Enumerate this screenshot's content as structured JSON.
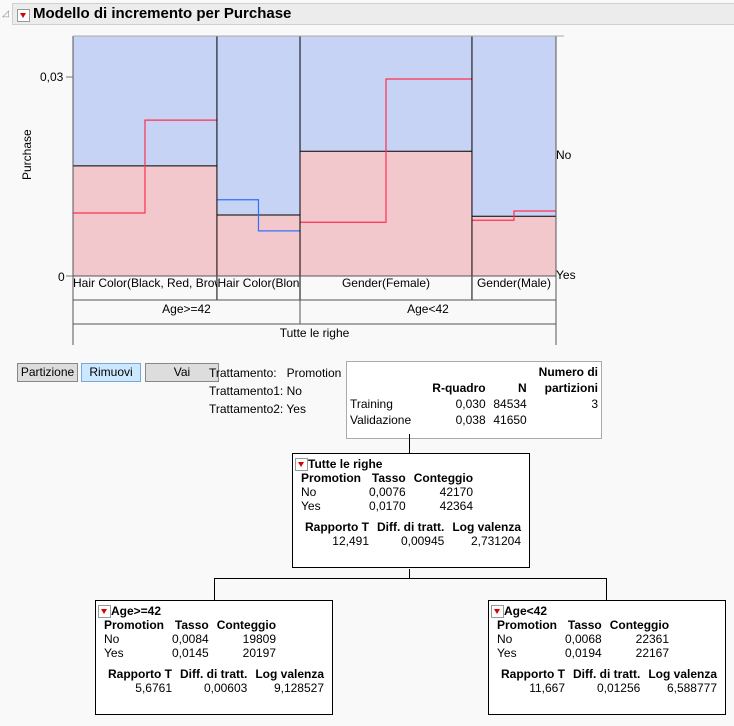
{
  "header": {
    "title": "Modello di incremento per Purchase"
  },
  "chart_data": {
    "type": "bar",
    "ylabel": "Purchase",
    "yticks": [
      "0",
      "0,03"
    ],
    "ylim": [
      0,
      0.036
    ],
    "right_labels": [
      "No",
      "Yes"
    ],
    "categories": [
      "Hair Color(Black, Red, Brow",
      "Hair Color(Blon",
      "Gender(Female)",
      "Gender(Male)"
    ],
    "groups": [
      "Age>=42",
      "Age<42"
    ],
    "root": "Tutte le righe",
    "shares": [
      0.298,
      0.172,
      0.356,
      0.174
    ],
    "purchase_rate": [
      0.0166,
      0.0092,
      0.0188,
      0.009
    ],
    "rate_no": [
      0.0095,
      0.0115,
      0.0081,
      0.0084
    ],
    "rate_yes": [
      0.0235,
      0.0068,
      0.0297,
      0.0098
    ],
    "line_colors": [
      "#ff3050",
      "#3070ff",
      "#ff3050",
      "#ff3050"
    ],
    "colors": {
      "no": "#c6d3f4",
      "yes": "#f2c8cd"
    }
  },
  "buttons": {
    "split": "Partizione",
    "prune": "Rimuovi",
    "go": "Vai"
  },
  "treatment": {
    "l1": "Trattamento:",
    "v1": "Promotion",
    "l2": "Trattamento1:",
    "v2": "No",
    "l3": "Trattamento2:",
    "v3": "Yes"
  },
  "summary": {
    "h_num1": "Numero di",
    "h_r2": "R-quadro",
    "h_n": "N",
    "h_num2": "partizioni",
    "rows": [
      {
        "label": "Training",
        "r2": "0,030",
        "n": "84534",
        "parts": "3"
      },
      {
        "label": "Validazione",
        "r2": "0,038",
        "n": "41650",
        "parts": ""
      }
    ]
  },
  "nodes": [
    {
      "title": "Tutte le righe",
      "h": [
        "Promotion",
        "Tasso",
        "Conteggio"
      ],
      "rows": [
        [
          "No",
          "0,0076",
          "42170"
        ],
        [
          "Yes",
          "0,0170",
          "42364"
        ]
      ],
      "sh": [
        "Rapporto T",
        "Diff. di tratt.",
        "Log valenza"
      ],
      "s": [
        "12,491",
        "0,00945",
        "2,731204"
      ]
    },
    {
      "title": "Age>=42",
      "h": [
        "Promotion",
        "Tasso",
        "Conteggio"
      ],
      "rows": [
        [
          "No",
          "0,0084",
          "19809"
        ],
        [
          "Yes",
          "0,0145",
          "20197"
        ]
      ],
      "sh": [
        "Rapporto T",
        "Diff. di tratt.",
        "Log valenza"
      ],
      "s": [
        "5,6761",
        "0,00603",
        "9,128527"
      ]
    },
    {
      "title": "Age<42",
      "h": [
        "Promotion",
        "Tasso",
        "Conteggio"
      ],
      "rows": [
        [
          "No",
          "0,0068",
          "22361"
        ],
        [
          "Yes",
          "0,0194",
          "22167"
        ]
      ],
      "sh": [
        "Rapporto T",
        "Diff. di tratt.",
        "Log valenza"
      ],
      "s": [
        "11,667",
        "0,01256",
        "6,588777"
      ]
    }
  ]
}
